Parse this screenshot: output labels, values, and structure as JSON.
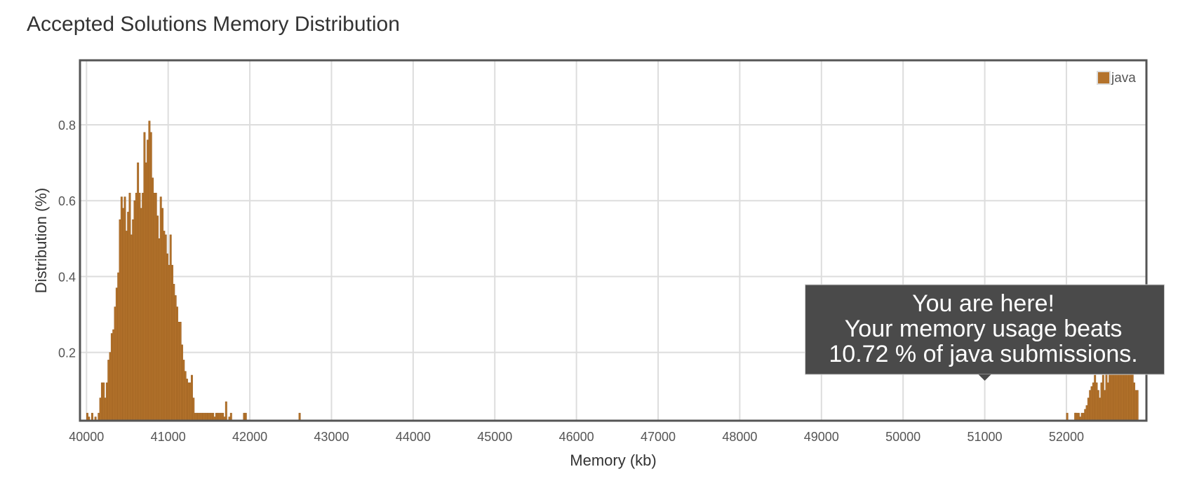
{
  "page": {
    "title": "Accepted Solutions Memory Distribution"
  },
  "chart_data": {
    "type": "bar",
    "title": "Accepted Solutions Memory Distribution",
    "xlabel": "Memory (kb)",
    "ylabel": "Distribution (%)",
    "xlim": [
      39920,
      52980
    ],
    "ylim": [
      0.02,
      0.97
    ],
    "xticks": [
      40000,
      41000,
      42000,
      43000,
      44000,
      45000,
      46000,
      47000,
      48000,
      49000,
      50000,
      51000,
      52000
    ],
    "yticks": [
      0.2,
      0.4,
      0.6,
      0.8
    ],
    "grid": true,
    "legend": {
      "position": "top-right",
      "entries": [
        "java"
      ]
    },
    "series": [
      {
        "name": "java",
        "color": "#b4732c",
        "bin_width": 20,
        "x": [
          40000,
          40020,
          40060,
          40100,
          40140,
          40160,
          40180,
          40200,
          40220,
          40240,
          40260,
          40280,
          40300,
          40320,
          40340,
          40360,
          40380,
          40400,
          40420,
          40440,
          40460,
          40480,
          40500,
          40520,
          40540,
          40560,
          40580,
          40600,
          40620,
          40640,
          40660,
          40680,
          40700,
          40720,
          40740,
          40760,
          40780,
          40800,
          40820,
          40840,
          40860,
          40880,
          40900,
          40920,
          40940,
          40960,
          40980,
          41000,
          41020,
          41040,
          41060,
          41080,
          41100,
          41120,
          41140,
          41160,
          41180,
          41200,
          41220,
          41240,
          41260,
          41280,
          41300,
          41320,
          41340,
          41360,
          41380,
          41400,
          41420,
          41440,
          41460,
          41480,
          41500,
          41520,
          41540,
          41560,
          41580,
          41600,
          41620,
          41640,
          41660,
          41680,
          41700,
          41740,
          41760,
          41920,
          41940,
          42600,
          52000,
          52100,
          52100,
          52120,
          52140,
          52160,
          52180,
          52200,
          52220,
          52240,
          52260,
          52280,
          52300,
          52320,
          52340,
          52360,
          52380,
          52400,
          52420,
          52440,
          52460,
          52480,
          52500,
          52520,
          52540,
          52560,
          52580,
          52600,
          52620,
          52640,
          52660,
          52680,
          52700,
          52720,
          52740,
          52760,
          52780,
          52800,
          52820,
          52840,
          52860
        ],
        "values": [
          0.04,
          0.03,
          0.04,
          0.03,
          0.04,
          0.08,
          0.12,
          0.12,
          0.08,
          0.12,
          0.18,
          0.2,
          0.25,
          0.26,
          0.32,
          0.37,
          0.41,
          0.55,
          0.61,
          0.58,
          0.61,
          0.52,
          0.57,
          0.62,
          0.51,
          0.55,
          0.6,
          0.62,
          0.7,
          0.62,
          0.58,
          0.62,
          0.78,
          0.7,
          0.76,
          0.81,
          0.78,
          0.66,
          0.62,
          0.62,
          0.56,
          0.5,
          0.61,
          0.58,
          0.52,
          0.51,
          0.46,
          0.43,
          0.51,
          0.43,
          0.38,
          0.35,
          0.32,
          0.28,
          0.28,
          0.22,
          0.18,
          0.15,
          0.13,
          0.12,
          0.12,
          0.14,
          0.08,
          0.04,
          0.04,
          0.04,
          0.04,
          0.04,
          0.04,
          0.04,
          0.04,
          0.04,
          0.04,
          0.04,
          0.04,
          0.03,
          0.04,
          0.04,
          0.04,
          0.04,
          0.04,
          0.03,
          0.07,
          0.03,
          0.04,
          0.04,
          0.04,
          0.04,
          0.04,
          0.04,
          0.04,
          0.04,
          0.04,
          0.03,
          0.04,
          0.04,
          0.05,
          0.06,
          0.08,
          0.1,
          0.11,
          0.12,
          0.14,
          0.12,
          0.1,
          0.08,
          0.12,
          0.14,
          0.1,
          0.16,
          0.12,
          0.18,
          0.2,
          0.16,
          0.22,
          0.25,
          0.2,
          0.26,
          0.28,
          0.24,
          0.22,
          0.2,
          0.24,
          0.2,
          0.18,
          0.16,
          0.12,
          0.1,
          0.1
        ]
      }
    ],
    "annotation": {
      "lines": [
        "You are here!",
        "Your memory usage beats",
        "10.72 % of java submissions."
      ],
      "anchor_x": 51000
    }
  }
}
